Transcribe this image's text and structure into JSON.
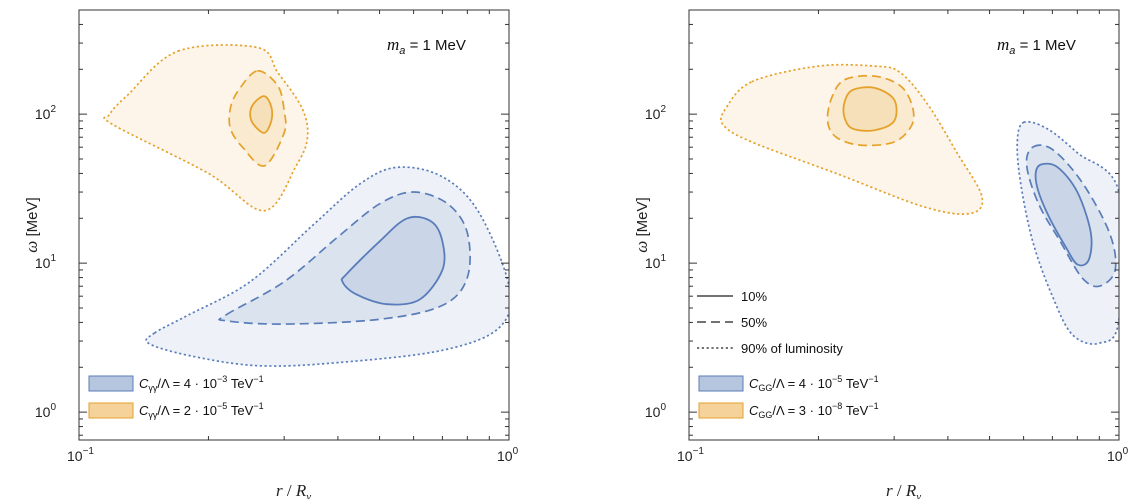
{
  "colors": {
    "blue_fill": "#b3c3dd",
    "blue_line": "#5a7dba",
    "orange_fill": "#f4d29a",
    "orange_line": "#e5a22b",
    "frame": "#333333"
  },
  "linestyle_legend": [
    {
      "label": "10%",
      "style": "solid"
    },
    {
      "label": "50%",
      "style": "dashed"
    },
    {
      "label": "90% of luminosity",
      "style": "dotted"
    }
  ],
  "chart_data": [
    {
      "type": "contour",
      "annotation": {
        "var": "m",
        "sub": "a",
        "text": " = 1 MeV"
      },
      "xlabel": {
        "var": "r",
        "sep": " / ",
        "var2": "R",
        "sub": "ν"
      },
      "ylabel": {
        "var": "ω",
        "unit": " [MeV]"
      },
      "xscale": "log",
      "yscale": "log",
      "xlim": [
        0.1,
        1.0
      ],
      "ylim": [
        0.65,
        500
      ],
      "xticks": [
        {
          "base": "10",
          "exp": "−1",
          "value": 0.1
        },
        {
          "base": "10",
          "exp": "0",
          "value": 1
        }
      ],
      "yticks": [
        {
          "base": "10",
          "exp": "0",
          "value": 1
        },
        {
          "base": "10",
          "exp": "1",
          "value": 10
        },
        {
          "base": "10",
          "exp": "2",
          "value": 100
        }
      ],
      "legend": {
        "position": "bottom-left",
        "items": [
          {
            "series": "blue",
            "coupling": {
              "C": "C",
              "sub": "γγ",
              "rest": "/Λ = 4 · 10",
              "exp": "−3",
              "unit": " TeV",
              "unitexp": "−1"
            }
          },
          {
            "series": "orange",
            "coupling": {
              "C": "C",
              "sub": "γγ",
              "rest": "/Λ = 2 · 10",
              "exp": "−5",
              "unit": " TeV",
              "unitexp": "−1"
            }
          }
        ]
      },
      "series": [
        {
          "color": "orange",
          "contours": [
            {
              "level": "90%",
              "points": [
                [
                  0.17,
                  265
                ],
                [
                  0.26,
                  280
                ],
                [
                  0.29,
                  190
                ],
                [
                  0.33,
                  110
                ],
                [
                  0.34,
                  70
                ],
                [
                  0.32,
                  45
                ],
                [
                  0.27,
                  22.5
                ],
                [
                  0.2,
                  40
                ],
                [
                  0.12,
                  85
                ],
                [
                  0.118,
                  100
                ],
                [
                  0.13,
                  135
                ]
              ]
            },
            {
              "level": "50%",
              "points": [
                [
                  0.26,
                  195
                ],
                [
                  0.29,
                  155
                ],
                [
                  0.3,
                  105
                ],
                [
                  0.3,
                  75
                ],
                [
                  0.27,
                  45
                ],
                [
                  0.24,
                  60
                ],
                [
                  0.225,
                  80
                ],
                [
                  0.225,
                  110
                ],
                [
                  0.235,
                  145
                ]
              ]
            },
            {
              "level": "10%",
              "points": [
                [
                  0.27,
                  132
                ],
                [
                  0.28,
                  112
                ],
                [
                  0.28,
                  90
                ],
                [
                  0.27,
                  75
                ],
                [
                  0.255,
                  85
                ],
                [
                  0.25,
                  100
                ],
                [
                  0.255,
                  118
                ]
              ]
            }
          ]
        },
        {
          "color": "blue",
          "contours": [
            {
              "level": "90%",
              "points": [
                [
                  0.15,
                  3.4
                ],
                [
                  0.18,
                  4.5
                ],
                [
                  0.25,
                  7.5
                ],
                [
                  0.35,
                  18
                ],
                [
                  0.45,
                  34
                ],
                [
                  0.55,
                  44
                ],
                [
                  0.7,
                  38
                ],
                [
                  0.85,
                  22
                ],
                [
                  1.0,
                  7
                ],
                [
                  0.95,
                  3.7
                ],
                [
                  0.7,
                  2.6
                ],
                [
                  0.4,
                  2.15
                ],
                [
                  0.26,
                  2.05
                ],
                [
                  0.18,
                  2.4
                ],
                [
                  0.145,
                  2.9
                ]
              ]
            },
            {
              "level": "50%",
              "points": [
                [
                  0.22,
                  4.5
                ],
                [
                  0.3,
                  7.5
                ],
                [
                  0.4,
                  15
                ],
                [
                  0.5,
                  25
                ],
                [
                  0.6,
                  30
                ],
                [
                  0.72,
                  25
                ],
                [
                  0.8,
                  16
                ],
                [
                  0.8,
                  8
                ],
                [
                  0.7,
                  5.2
                ],
                [
                  0.5,
                  4.2
                ],
                [
                  0.3,
                  3.9
                ],
                [
                  0.22,
                  4.1
                ]
              ]
            },
            {
              "level": "10%",
              "points": [
                [
                  0.42,
                  8.5
                ],
                [
                  0.5,
                  14
                ],
                [
                  0.58,
                  20
                ],
                [
                  0.66,
                  19
                ],
                [
                  0.7,
                  14
                ],
                [
                  0.7,
                  9
                ],
                [
                  0.62,
                  5.7
                ],
                [
                  0.52,
                  5.3
                ],
                [
                  0.44,
                  6.2
                ],
                [
                  0.41,
                  7.5
                ]
              ]
            }
          ]
        }
      ]
    },
    {
      "type": "contour",
      "annotation": {
        "var": "m",
        "sub": "a",
        "text": " = 1 MeV"
      },
      "xlabel": {
        "var": "r",
        "sep": " / ",
        "var2": "R",
        "sub": "ν"
      },
      "ylabel": {
        "var": "ω",
        "unit": " [MeV]"
      },
      "xscale": "log",
      "yscale": "log",
      "xlim": [
        0.1,
        1.0
      ],
      "ylim": [
        0.65,
        500
      ],
      "xticks": [
        {
          "base": "10",
          "exp": "−1",
          "value": 0.1
        },
        {
          "base": "10",
          "exp": "0",
          "value": 1
        }
      ],
      "yticks": [
        {
          "base": "10",
          "exp": "0",
          "value": 1
        },
        {
          "base": "10",
          "exp": "1",
          "value": 10
        },
        {
          "base": "10",
          "exp": "2",
          "value": 100
        }
      ],
      "legend": {
        "position": "bottom-left",
        "items": [
          {
            "series": "blue",
            "coupling": {
              "C": "C",
              "sub": "GG",
              "rest": "/Λ = 4 · 10",
              "exp": "−5",
              "unit": " TeV",
              "unitexp": "−1"
            }
          },
          {
            "series": "orange",
            "coupling": {
              "C": "C",
              "sub": "GG",
              "rest": "/Λ = 3 · 10",
              "exp": "−8",
              "unit": " TeV",
              "unitexp": "−1"
            }
          }
        ]
      },
      "series": [
        {
          "color": "orange",
          "contours": [
            {
              "level": "90%",
              "points": [
                [
                  0.14,
                  165
                ],
                [
                  0.2,
                  210
                ],
                [
                  0.27,
                  210
                ],
                [
                  0.31,
                  190
                ],
                [
                  0.36,
                  115
                ],
                [
                  0.42,
                  55
                ],
                [
                  0.48,
                  28
                ],
                [
                  0.45,
                  21.5
                ],
                [
                  0.35,
                  24
                ],
                [
                  0.22,
                  40
                ],
                [
                  0.14,
                  65
                ],
                [
                  0.12,
                  85
                ],
                [
                  0.122,
                  110
                ]
              ]
            },
            {
              "level": "50%",
              "points": [
                [
                  0.23,
                  170
                ],
                [
                  0.27,
                  180
                ],
                [
                  0.31,
                  155
                ],
                [
                  0.33,
                  115
                ],
                [
                  0.33,
                  85
                ],
                [
                  0.3,
                  65
                ],
                [
                  0.25,
                  62
                ],
                [
                  0.22,
                  70
                ],
                [
                  0.21,
                  90
                ],
                [
                  0.215,
                  130
                ]
              ]
            },
            {
              "level": "10%",
              "points": [
                [
                  0.24,
                  145
                ],
                [
                  0.27,
                  150
                ],
                [
                  0.3,
                  125
                ],
                [
                  0.3,
                  90
                ],
                [
                  0.27,
                  78
                ],
                [
                  0.24,
                  80
                ],
                [
                  0.23,
                  95
                ],
                [
                  0.23,
                  120
                ]
              ]
            }
          ]
        },
        {
          "color": "blue",
          "contours": [
            {
              "level": "90%",
              "points": [
                [
                  0.6,
                  88
                ],
                [
                  0.68,
                  80
                ],
                [
                  0.8,
                  55
                ],
                [
                  1.0,
                  30
                ],
                [
                  1.0,
                  4.2
                ],
                [
                  0.9,
                  2.9
                ],
                [
                  0.78,
                  3.3
                ],
                [
                  0.7,
                  6
                ],
                [
                  0.63,
                  14
                ],
                [
                  0.59,
                  35
                ],
                [
                  0.58,
                  65
                ]
              ]
            },
            {
              "level": "50%",
              "points": [
                [
                  0.63,
                  60
                ],
                [
                  0.7,
                  58
                ],
                [
                  0.82,
                  35
                ],
                [
                  0.95,
                  16
                ],
                [
                  0.98,
                  9
                ],
                [
                  0.9,
                  7
                ],
                [
                  0.82,
                  8
                ],
                [
                  0.73,
                  14
                ],
                [
                  0.65,
                  25
                ],
                [
                  0.61,
                  45
                ]
              ]
            },
            {
              "level": "10%",
              "points": [
                [
                  0.66,
                  46
                ],
                [
                  0.72,
                  44
                ],
                [
                  0.8,
                  30
                ],
                [
                  0.86,
                  16
                ],
                [
                  0.85,
                  10.5
                ],
                [
                  0.8,
                  9.8
                ],
                [
                  0.75,
                  13
                ],
                [
                  0.69,
                  20
                ],
                [
                  0.65,
                  30
                ],
                [
                  0.64,
                  40
                ]
              ]
            }
          ]
        }
      ]
    }
  ]
}
